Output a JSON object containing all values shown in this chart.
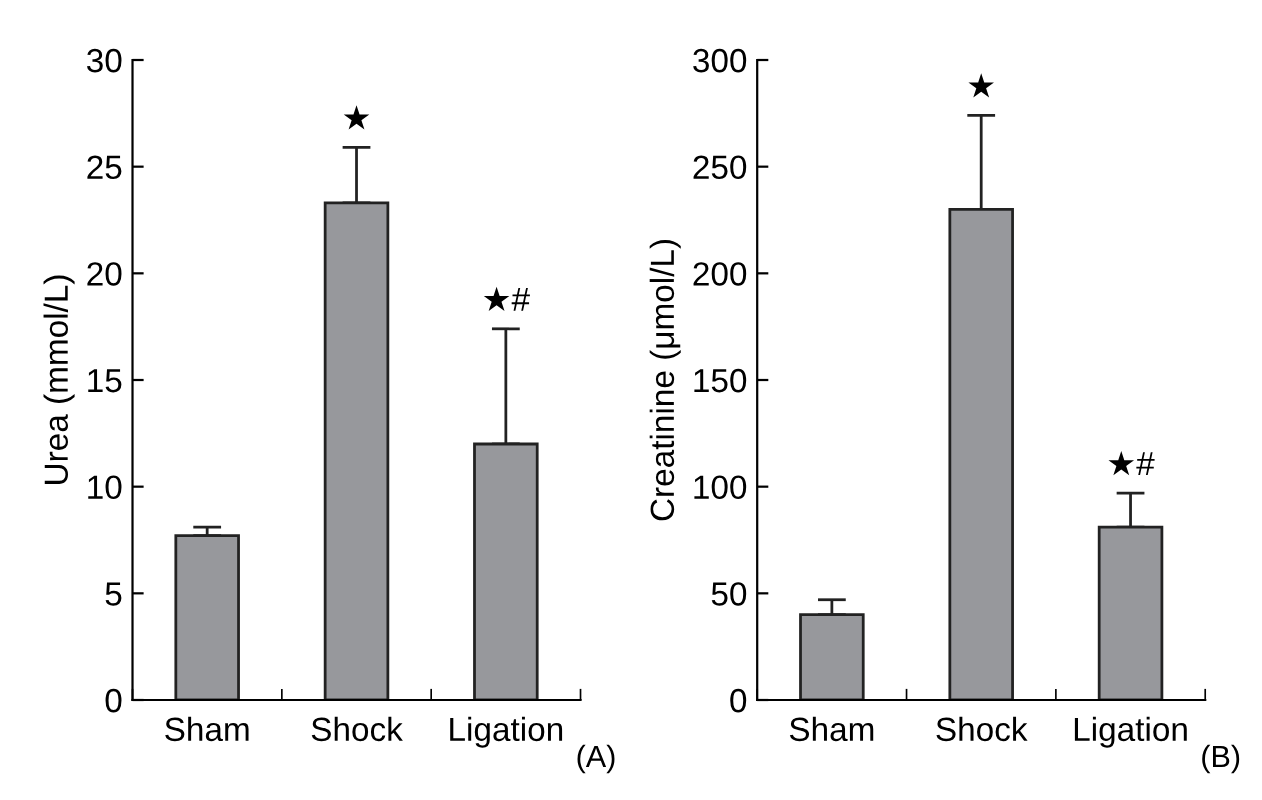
{
  "chart_data": [
    {
      "type": "bar",
      "categories": [
        "Sham",
        "Shock",
        "Ligation"
      ],
      "values": [
        7.7,
        23.3,
        12.0
      ],
      "color": "#97989c",
      "errors": [
        [
          7.7,
          8.1
        ],
        [
          23.3,
          25.9
        ],
        [
          12.0,
          17.4
        ]
      ],
      "ylabel": "Urea (mmol/L)",
      "ylim": [
        0,
        30
      ],
      "yticks": [
        0,
        5,
        10,
        15,
        20,
        25,
        30
      ],
      "grid": false,
      "legend": false,
      "annotations": [
        {
          "text": "★",
          "x": "Shock",
          "y": 25.9
        },
        {
          "text": "★#",
          "x": "Ligation",
          "y": 17.4
        },
        "(A)"
      ]
    },
    {
      "type": "bar",
      "categories": [
        "Sham",
        "Shock",
        "Ligation"
      ],
      "values": [
        40,
        230,
        81
      ],
      "color": "#97989c",
      "errors": [
        [
          40,
          47
        ],
        [
          230,
          274
        ],
        [
          81,
          97
        ]
      ],
      "ylabel": "Creatinine (μmol/L)",
      "ylim": [
        0,
        300
      ],
      "yticks": [
        0,
        50,
        100,
        150,
        200,
        250,
        300
      ],
      "grid": false,
      "legend": false,
      "annotations": [
        {
          "text": "★",
          "x": "Shock",
          "y": 274
        },
        {
          "text": "★#",
          "x": "Ligation",
          "y": 97
        },
        "(B)"
      ]
    }
  ]
}
